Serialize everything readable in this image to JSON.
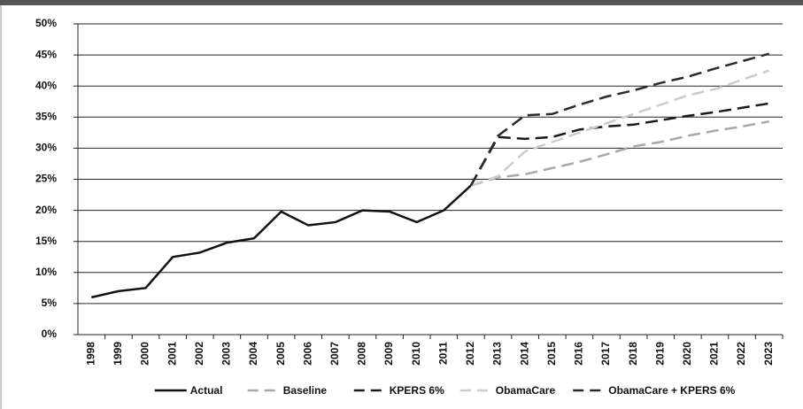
{
  "chart_data": {
    "type": "line",
    "categories": [
      "1998",
      "1999",
      "2000",
      "2001",
      "2002",
      "2003",
      "2004",
      "2005",
      "2006",
      "2007",
      "2008",
      "2009",
      "2010",
      "2011",
      "2012",
      "2013",
      "2014",
      "2015",
      "2016",
      "2017",
      "2018",
      "2019",
      "2020",
      "2021",
      "2022",
      "2023"
    ],
    "series": [
      {
        "name": "Actual",
        "color": "#111111",
        "line_style": "solid",
        "values": [
          6,
          7,
          7.5,
          12.5,
          13.2,
          14.8,
          15.5,
          19.8,
          17.6,
          18.1,
          20,
          19.8,
          18.1,
          20,
          24,
          null,
          null,
          null,
          null,
          null,
          null,
          null,
          null,
          null,
          null,
          null
        ]
      },
      {
        "name": "Baseline",
        "color": "#a8a8a8",
        "line_style": "dashed",
        "values": [
          null,
          null,
          null,
          null,
          null,
          null,
          null,
          null,
          null,
          null,
          null,
          null,
          null,
          null,
          24,
          25.3,
          25.8,
          26.8,
          27.8,
          29,
          30.3,
          31,
          32,
          32.8,
          33.5,
          34.3
        ]
      },
      {
        "name": "KPERS 6%",
        "color": "#1a1a1a",
        "line_style": "dashed",
        "values": [
          null,
          null,
          null,
          null,
          null,
          null,
          null,
          null,
          null,
          null,
          null,
          null,
          null,
          null,
          24,
          31.8,
          31.5,
          31.8,
          33,
          33.5,
          33.8,
          34.5,
          35.2,
          35.8,
          36.5,
          37.2
        ]
      },
      {
        "name": "ObamaCare",
        "color": "#cccccc",
        "line_style": "dashed",
        "values": [
          null,
          null,
          null,
          null,
          null,
          null,
          null,
          null,
          null,
          null,
          null,
          null,
          null,
          null,
          24,
          25.5,
          29.5,
          31,
          32.5,
          34,
          35.5,
          37,
          38.5,
          39.5,
          41,
          42.5
        ]
      },
      {
        "name": "ObamaCare + KPERS 6%",
        "color": "#2a2a2a",
        "line_style": "dashed",
        "values": [
          null,
          null,
          null,
          null,
          null,
          null,
          null,
          null,
          null,
          null,
          null,
          null,
          null,
          null,
          24,
          32,
          35.3,
          35.5,
          37,
          38.3,
          39.3,
          40.5,
          41.5,
          42.8,
          44,
          45.2
        ]
      }
    ],
    "ylim": [
      0,
      50
    ],
    "yticks": [
      {
        "value": 0,
        "label": "0%"
      },
      {
        "value": 5,
        "label": "5%"
      },
      {
        "value": 10,
        "label": "10%"
      },
      {
        "value": 15,
        "label": "15%"
      },
      {
        "value": 20,
        "label": "20%"
      },
      {
        "value": 25,
        "label": "25%"
      },
      {
        "value": 30,
        "label": "30%"
      },
      {
        "value": 35,
        "label": "35%"
      },
      {
        "value": 40,
        "label": "40%"
      },
      {
        "value": 45,
        "label": "45%"
      },
      {
        "value": 50,
        "label": "50%"
      }
    ],
    "grid": true,
    "legend": "bottom"
  }
}
